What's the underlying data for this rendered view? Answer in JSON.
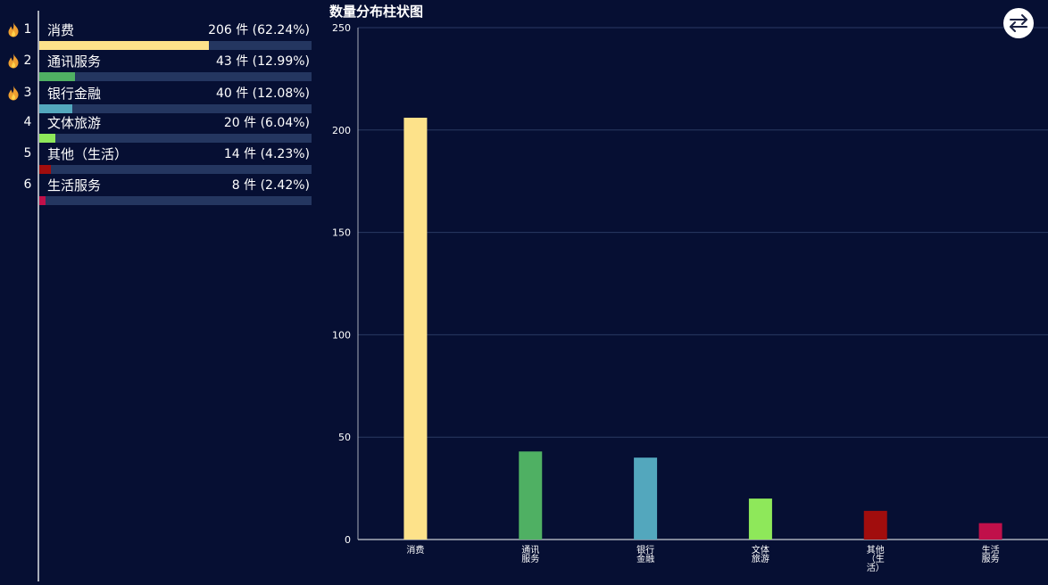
{
  "ranking": {
    "unit": "件",
    "items": [
      {
        "rank": "1",
        "label": "消费",
        "value_text": "206 件 (62.24%)",
        "value": 206,
        "percent": 62.24,
        "color": "#fde28a",
        "hot": true
      },
      {
        "rank": "2",
        "label": "通讯服务",
        "value_text": "43 件 (12.99%)",
        "value": 43,
        "percent": 12.99,
        "color": "#4fb063",
        "hot": true
      },
      {
        "rank": "3",
        "label": "银行金融",
        "value_text": "40 件 (12.08%)",
        "value": 40,
        "percent": 12.08,
        "color": "#53a7bd",
        "hot": true
      },
      {
        "rank": "4",
        "label": "文体旅游",
        "value_text": "20 件 (6.04%)",
        "value": 20,
        "percent": 6.04,
        "color": "#8ee85a",
        "hot": false
      },
      {
        "rank": "5",
        "label": "其他（生活）",
        "value_text": "14 件 (4.23%)",
        "value": 14,
        "percent": 4.23,
        "color": "#a10d0d",
        "hot": false
      },
      {
        "rank": "6",
        "label": "生活服务",
        "value_text": "8 件 (2.42%)",
        "value": 8,
        "percent": 2.42,
        "color": "#c0104a",
        "hot": false
      }
    ]
  },
  "chart_data": {
    "type": "bar",
    "title": "数量分布柱状图",
    "categories": [
      "消费",
      "通讯服务",
      "银行金融",
      "文体旅游",
      "其他（生活）",
      "生活服务"
    ],
    "category_tick_labels": [
      [
        "消费"
      ],
      [
        "通讯",
        "服务"
      ],
      [
        "银行",
        "金融"
      ],
      [
        "文体",
        "旅游"
      ],
      [
        "其他",
        "（生",
        "活）"
      ],
      [
        "生活",
        "服务"
      ]
    ],
    "values": [
      206,
      43,
      40,
      20,
      14,
      8
    ],
    "colors": [
      "#fde28a",
      "#4fb063",
      "#53a7bd",
      "#8ee85a",
      "#a10d0d",
      "#c0104a"
    ],
    "ylim": [
      0,
      250
    ],
    "yticks": [
      0,
      50,
      100,
      150,
      200,
      250
    ],
    "grid": true,
    "xlabel": "",
    "ylabel": ""
  },
  "toolbar": {
    "switch_icon": "swap-arrows-icon"
  },
  "colors": {
    "background": "#060f33",
    "track": "#243660",
    "gridline": "#2a3a63",
    "axis": "#a8adb9",
    "hot_icon": "#f0a030"
  }
}
